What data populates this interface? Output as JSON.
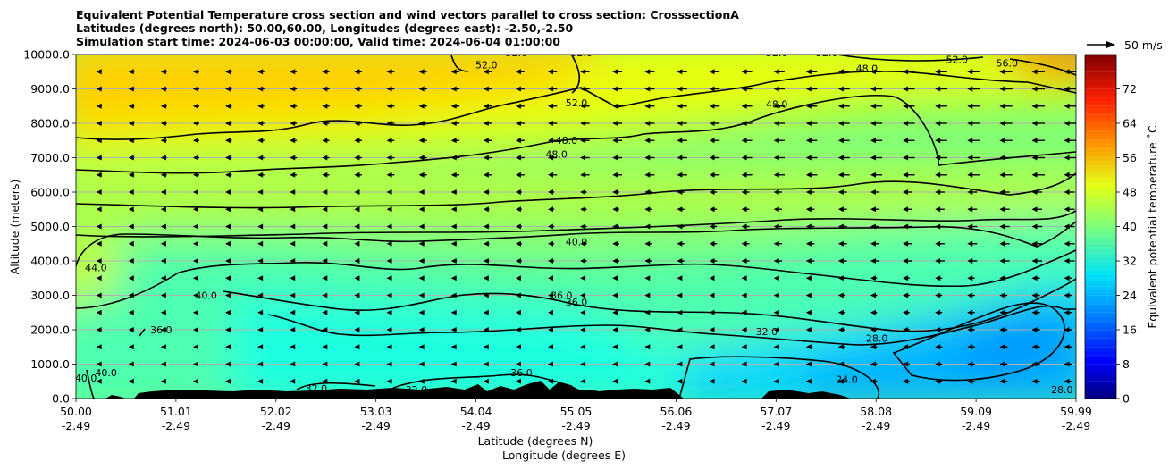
{
  "chart_data": {
    "type": "contour",
    "title_lines": [
      "Equivalent Potential Temperature cross section and wind vectors parallel to cross section: CrosssectionA",
      "Latitudes (degrees north): 50.00,60.00, Longitudes (degrees east): -2.50,-2.50",
      "Simulation start time: 2024-06-03 00:00:00, Valid time: 2024-06-04 01:00:00"
    ],
    "ylabel": "Altitude (meters)",
    "xlabel_lat": "Latitude (degrees N)",
    "xlabel_lon": "Longitude (degrees E)",
    "ylim": [
      0,
      10000
    ],
    "yticks": [
      "0.0",
      "1000.0",
      "2000.0",
      "3000.0",
      "4000.0",
      "5000.0",
      "6000.0",
      "7000.0",
      "8000.0",
      "9000.0",
      "10000.0"
    ],
    "xlim": [
      50.0,
      59.99
    ],
    "xticks_lat": [
      "50.00",
      "51.01",
      "52.02",
      "53.03",
      "54.04",
      "55.05",
      "56.06",
      "57.07",
      "58.08",
      "59.09",
      "59.99"
    ],
    "xticks_lon": [
      "-2.49",
      "-2.49",
      "-2.49",
      "-2.49",
      "-2.49",
      "-2.49",
      "-2.49",
      "-2.49",
      "-2.49",
      "-2.49",
      "-2.49"
    ],
    "grid": "horizontal",
    "colorbar": {
      "label": "Equivalent potential temperature ˚C",
      "range": [
        0,
        80
      ],
      "ticks": [
        "0",
        "8",
        "16",
        "24",
        "32",
        "40",
        "48",
        "56",
        "64",
        "72"
      ]
    },
    "quiver_key": "50 m/s",
    "contour_levels": [
      24,
      28,
      32,
      36,
      40,
      44,
      48,
      52,
      56
    ],
    "contour_labels": [
      {
        "text": "52.0",
        "x": 54.1,
        "y": 9600
      },
      {
        "text": "52.0",
        "x": 54.4,
        "y": 9950
      },
      {
        "text": "52.0",
        "x": 55.05,
        "y": 9950
      },
      {
        "text": "52.0",
        "x": 55.0,
        "y": 8500
      },
      {
        "text": "52.0",
        "x": 57.0,
        "y": 9950
      },
      {
        "text": "52.0",
        "x": 57.5,
        "y": 9950
      },
      {
        "text": "52.0",
        "x": 58.8,
        "y": 9750
      },
      {
        "text": "56.0",
        "x": 59.3,
        "y": 9650
      },
      {
        "text": "48.0",
        "x": 57.9,
        "y": 9500
      },
      {
        "text": "48.0",
        "x": 57.0,
        "y": 8450
      },
      {
        "text": "48.0",
        "x": 54.9,
        "y": 7400
      },
      {
        "text": "48.0",
        "x": 54.8,
        "y": 7000
      },
      {
        "text": "40.0",
        "x": 55.0,
        "y": 4450
      },
      {
        "text": "40.0",
        "x": 51.3,
        "y": 2900
      },
      {
        "text": "44.0",
        "x": 50.2,
        "y": 3700
      },
      {
        "text": "36.0",
        "x": 54.85,
        "y": 2900
      },
      {
        "text": "36.0",
        "x": 55.0,
        "y": 2700
      },
      {
        "text": "36.0",
        "x": 50.85,
        "y": 1900
      },
      {
        "text": "32.0",
        "x": 56.9,
        "y": 1850
      },
      {
        "text": "28.0",
        "x": 58.0,
        "y": 1650
      },
      {
        "text": "24.0",
        "x": 57.7,
        "y": 450
      },
      {
        "text": "40.0",
        "x": 50.3,
        "y": 650
      },
      {
        "text": "40.0",
        "x": 50.1,
        "y": 500
      },
      {
        "text": "36.0",
        "x": 54.45,
        "y": 650
      },
      {
        "text": "32.0",
        "x": 52.4,
        "y": 200
      },
      {
        "text": "32.0",
        "x": 53.4,
        "y": 150
      },
      {
        "text": "28.0",
        "x": 59.85,
        "y": 150
      }
    ],
    "colors": {
      "grid": "#b0b0b0",
      "terrain": "#000000",
      "contour": "#000000"
    }
  }
}
